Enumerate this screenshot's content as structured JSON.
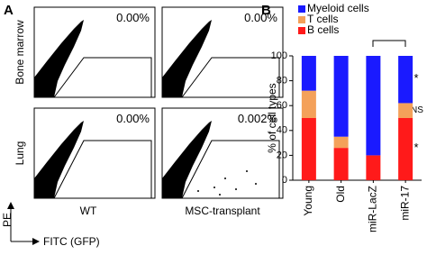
{
  "panel_a": {
    "label": "A",
    "rows": [
      "Bone marrow",
      "Lung"
    ],
    "columns": [
      "WT",
      "MSC-transplant"
    ],
    "percentages": [
      [
        "0.00%",
        "0.00%"
      ],
      [
        "0.00%",
        "0.002%"
      ]
    ],
    "y_axis": "PE",
    "x_axis": "FITC (GFP)"
  },
  "chart_data": {
    "type": "bar",
    "label": "B",
    "stacked": true,
    "ylabel": "% of cell types",
    "categories": [
      "Young",
      "Old",
      "miR-LacZ",
      "miR-17"
    ],
    "series": [
      {
        "name": "Myeloid cells",
        "color": "#1a1aff",
        "values": [
          28,
          65,
          80,
          38
        ]
      },
      {
        "name": "T cells",
        "color": "#f4a15a",
        "values": [
          22,
          9,
          0,
          12
        ]
      },
      {
        "name": "B cells",
        "color": "#ff1a1a",
        "values": [
          50,
          26,
          20,
          50
        ]
      }
    ],
    "ylim": [
      0,
      100
    ],
    "yticks": [
      0,
      20,
      40,
      60,
      80,
      100
    ],
    "annotations": [
      "*",
      "NS",
      "*"
    ]
  }
}
